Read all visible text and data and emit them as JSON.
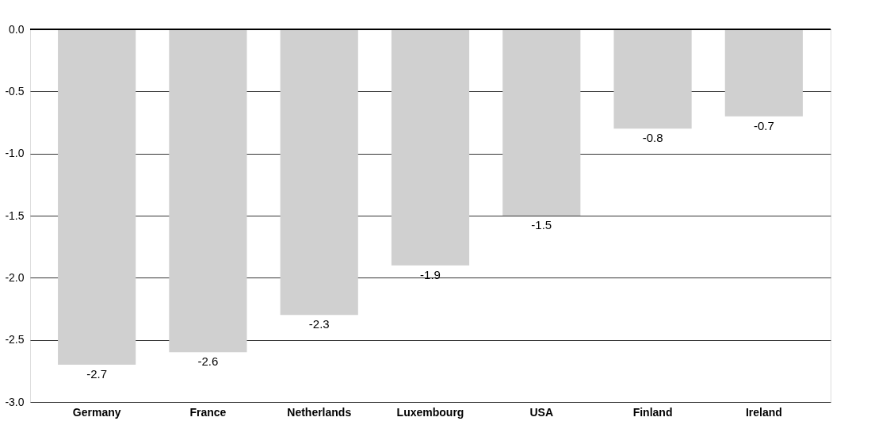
{
  "chart_data": {
    "type": "bar",
    "categories": [
      "Germany",
      "France",
      "Netherlands",
      "Luxembourg",
      "USA",
      "Finland",
      "Ireland"
    ],
    "values": [
      -2.7,
      -2.6,
      -2.3,
      -1.9,
      -1.5,
      -0.8,
      -0.7
    ],
    "color": "#d0d0d0",
    "data_labels": true,
    "grid": "y",
    "ylim": [
      -3.0,
      0.0
    ],
    "yticks": [
      {
        "value": 0,
        "label": "0.0"
      },
      -0.5,
      {
        "value": -1,
        "label": "-1.0"
      },
      -1.5,
      {
        "value": -2,
        "label": "-2.0"
      },
      -2.5,
      {
        "value": -3,
        "label": "-3.0"
      }
    ]
  }
}
